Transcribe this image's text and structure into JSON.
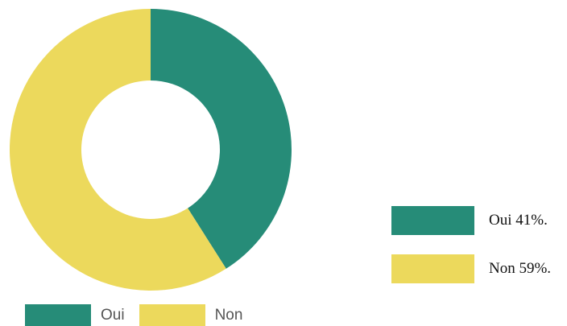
{
  "chart_data": {
    "type": "pie",
    "donut": true,
    "categories": [
      "Oui",
      "Non"
    ],
    "values": [
      41,
      59
    ],
    "unit": "%",
    "colors": [
      "#268c78",
      "#ecd95c"
    ],
    "legend_placement": "bottom-left",
    "legend": [
      {
        "label": "Oui",
        "color": "#268c78"
      },
      {
        "label": "Non",
        "color": "#ecd95c"
      }
    ]
  },
  "side_legend": {
    "items": [
      {
        "label": "Oui 41%.",
        "color": "#268c78"
      },
      {
        "label": "Non 59%.",
        "color": "#ecd95c"
      }
    ]
  }
}
